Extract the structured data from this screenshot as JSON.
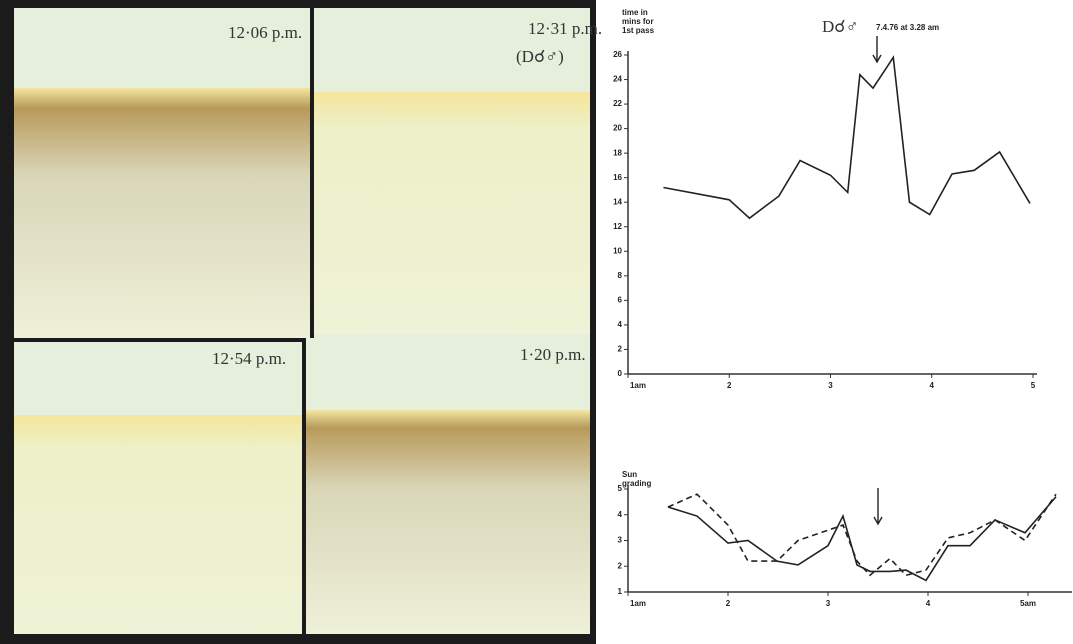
{
  "photo_labels": [
    "12·06 p.m.",
    "12·31 p.m.",
    "(D☌♂)",
    "12·54 p.m.",
    "1·20 p.m."
  ],
  "chart_data": [
    {
      "type": "line",
      "y_label": [
        "time in",
        "mins for",
        "1st pass"
      ],
      "annotation": [
        "D☌♂",
        "7.4.76 at 3.28 am"
      ],
      "xlim": [
        1,
        5
      ],
      "xticks": [
        {
          "value": 1,
          "label": "1am"
        },
        2,
        3,
        4,
        5
      ],
      "ylim": [
        0,
        26
      ],
      "yticks": [
        0,
        2,
        4,
        6,
        8,
        10,
        12,
        14,
        16,
        18,
        20,
        22,
        24,
        26
      ],
      "series": [
        {
          "color": "#222222",
          "dash": false,
          "x": [
            1.35,
            2.0,
            2.2,
            2.49,
            2.7,
            3.0,
            3.17,
            3.29,
            3.42,
            3.62,
            3.78,
            3.98,
            4.2,
            4.42,
            4.67,
            4.97
          ],
          "values": [
            15.2,
            14.2,
            12.7,
            14.5,
            17.4,
            16.2,
            14.8,
            24.4,
            23.3,
            25.8,
            14.0,
            13.0,
            16.3,
            16.6,
            18.1,
            13.9
          ]
        }
      ]
    },
    {
      "type": "line",
      "y_label": [
        "Sun",
        "grading"
      ],
      "xlim": [
        1,
        5.4
      ],
      "xticks": [
        {
          "value": 1,
          "label": "1am"
        },
        2,
        3,
        4,
        {
          "value": 5,
          "label": "5am"
        }
      ],
      "ylim": [
        1,
        5
      ],
      "yticks": [
        1,
        2,
        3,
        4,
        5
      ],
      "series": [
        {
          "color": "#222222",
          "dash": false,
          "x": [
            1.4,
            1.69,
            2.0,
            2.2,
            2.49,
            2.7,
            3.0,
            3.15,
            3.29,
            3.42,
            3.62,
            3.78,
            3.98,
            4.2,
            4.42,
            4.67,
            4.97,
            5.28
          ],
          "values": [
            4.3,
            3.95,
            2.9,
            3.0,
            2.2,
            2.05,
            2.8,
            3.95,
            2.05,
            1.8,
            1.8,
            1.85,
            1.45,
            2.8,
            2.8,
            3.8,
            3.3,
            4.7
          ]
        },
        {
          "color": "#222222",
          "dash": true,
          "x": [
            1.4,
            1.69,
            2.0,
            2.2,
            2.49,
            2.7,
            3.0,
            3.15,
            3.29,
            3.42,
            3.62,
            3.78,
            3.98,
            4.2,
            4.42,
            4.67,
            4.97,
            5.28
          ],
          "values": [
            4.3,
            4.8,
            3.6,
            2.2,
            2.2,
            3.0,
            3.4,
            3.6,
            2.2,
            1.65,
            2.3,
            1.65,
            1.85,
            3.1,
            3.3,
            3.8,
            3.0,
            4.8
          ]
        }
      ]
    }
  ]
}
